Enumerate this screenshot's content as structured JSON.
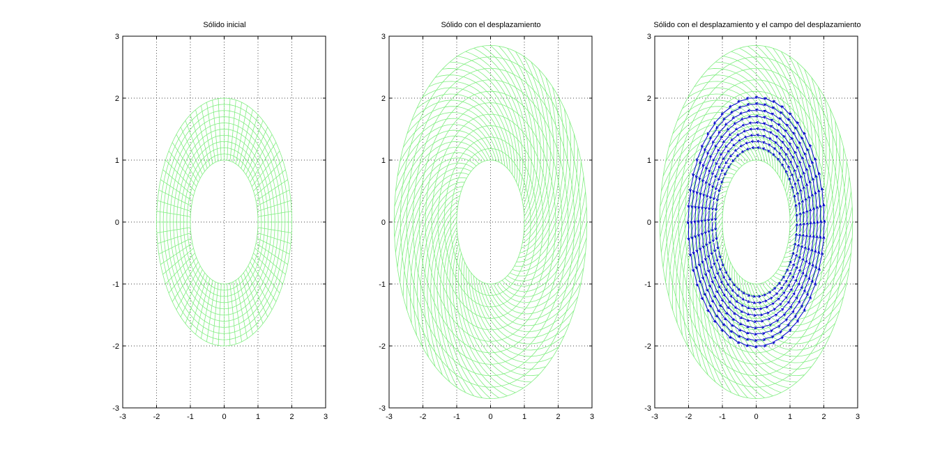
{
  "chart_data": [
    {
      "type": "mesh",
      "title": "Sólido inicial",
      "xlim": [
        -3,
        3
      ],
      "ylim": [
        -3,
        3
      ],
      "xticks": [
        "-3",
        "-2",
        "-1",
        "0",
        "1",
        "2",
        "3"
      ],
      "yticks": [
        "3",
        "2",
        "1",
        "0",
        "-1",
        "-2",
        "-3"
      ],
      "grid": true,
      "mesh": {
        "inner_radius": 1,
        "outer_radius": 2,
        "rings": 11,
        "spokes": 72,
        "color": "#80ee80",
        "displaced": false
      },
      "quiver": null
    },
    {
      "type": "mesh",
      "title": "Sólido con el desplazamiento",
      "xlim": [
        -3,
        3
      ],
      "ylim": [
        -3,
        3
      ],
      "xticks": [
        "-3",
        "-2",
        "-1",
        "0",
        "1",
        "2",
        "3"
      ],
      "yticks": [
        "3",
        "2",
        "1",
        "0",
        "-1",
        "-2",
        "-3"
      ],
      "grid": true,
      "mesh": {
        "inner_radius": 1,
        "outer_radius": 2.85,
        "rings": 11,
        "spokes": 72,
        "color": "#80ee80",
        "displaced": true,
        "twist_degrees": 80
      },
      "quiver": null
    },
    {
      "type": "mesh",
      "title": "Sólido con el desplazamiento y el campo del desplazamiento",
      "xlim": [
        -3,
        3
      ],
      "ylim": [
        -3,
        3
      ],
      "xticks": [
        "-3",
        "-2",
        "-1",
        "0",
        "1",
        "2",
        "3"
      ],
      "yticks": [
        "3",
        "2",
        "1",
        "0",
        "-1",
        "-2",
        "-3"
      ],
      "grid": true,
      "mesh": {
        "inner_radius": 1,
        "outer_radius": 2.85,
        "rings": 11,
        "spokes": 72,
        "color": "#80ee80",
        "displaced": true,
        "twist_degrees": 80
      },
      "quiver": {
        "color": "#0000cc",
        "rings": [
          1.2,
          1.3,
          1.4,
          1.5,
          1.6,
          1.7,
          1.8,
          1.9,
          2.0
        ],
        "arrows_per_ring": 48
      }
    }
  ]
}
